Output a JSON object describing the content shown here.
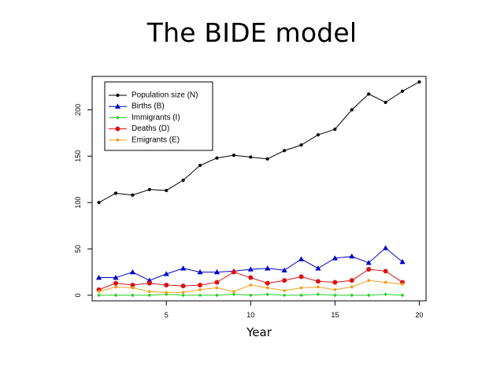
{
  "slide": {
    "title": "The BIDE model"
  },
  "chart_data": {
    "type": "line",
    "title": "The BIDE model",
    "xlabel": "Year",
    "ylabel": "",
    "xlim": [
      0.6,
      20.4
    ],
    "ylim": [
      -6,
      236
    ],
    "xticks": [
      5,
      10,
      15,
      20
    ],
    "yticks": [
      0,
      50,
      100,
      150,
      200
    ],
    "legend_position": "top-left",
    "series": [
      {
        "name": "Population size (N)",
        "color": "#000000",
        "marker": "circle",
        "x": [
          1,
          2,
          3,
          4,
          5,
          6,
          7,
          8,
          9,
          10,
          11,
          12,
          13,
          14,
          15,
          16,
          17,
          18,
          19,
          20
        ],
        "values": [
          100,
          110,
          108,
          114,
          113,
          124,
          140,
          148,
          151,
          149,
          147,
          156,
          162,
          173,
          179,
          200,
          217,
          208,
          220,
          230
        ]
      },
      {
        "name": "Births (B)",
        "color": "#0000cd",
        "marker": "triangle",
        "x": [
          1,
          2,
          3,
          4,
          5,
          6,
          7,
          8,
          9,
          10,
          11,
          12,
          13,
          14,
          15,
          16,
          17,
          18,
          19
        ],
        "values": [
          19,
          19,
          25,
          16,
          23,
          29,
          25,
          25,
          26,
          28,
          29,
          27,
          39,
          29,
          40,
          42,
          35,
          51,
          36
        ]
      },
      {
        "name": "Immigrants (I)",
        "color": "#22cc22",
        "marker": "diamond",
        "x": [
          1,
          2,
          3,
          4,
          5,
          6,
          7,
          8,
          9,
          10,
          11,
          12,
          13,
          14,
          15,
          16,
          17,
          18,
          19
        ],
        "values": [
          0,
          0,
          0,
          0,
          1,
          0,
          0,
          0,
          1,
          0,
          1,
          0,
          0,
          1,
          0,
          0,
          0,
          1,
          0
        ]
      },
      {
        "name": "Deaths (D)",
        "color": "#dd1111",
        "marker": "circle",
        "x": [
          1,
          2,
          3,
          4,
          5,
          6,
          7,
          8,
          9,
          10,
          11,
          12,
          13,
          14,
          15,
          16,
          17,
          18,
          19
        ],
        "values": [
          6,
          13,
          11,
          13,
          11,
          10,
          11,
          14,
          25,
          19,
          13,
          16,
          20,
          15,
          14,
          16,
          28,
          26,
          14
        ]
      },
      {
        "name": "Emigrants (E)",
        "color": "#f0a020",
        "marker": "circle-small",
        "x": [
          1,
          2,
          3,
          4,
          5,
          6,
          7,
          8,
          9,
          10,
          11,
          12,
          13,
          14,
          15,
          16,
          17,
          18,
          19
        ],
        "values": [
          4,
          9,
          8,
          4,
          3,
          3,
          6,
          8,
          4,
          11,
          8,
          5,
          8,
          9,
          6,
          9,
          16,
          14,
          12
        ]
      }
    ]
  }
}
